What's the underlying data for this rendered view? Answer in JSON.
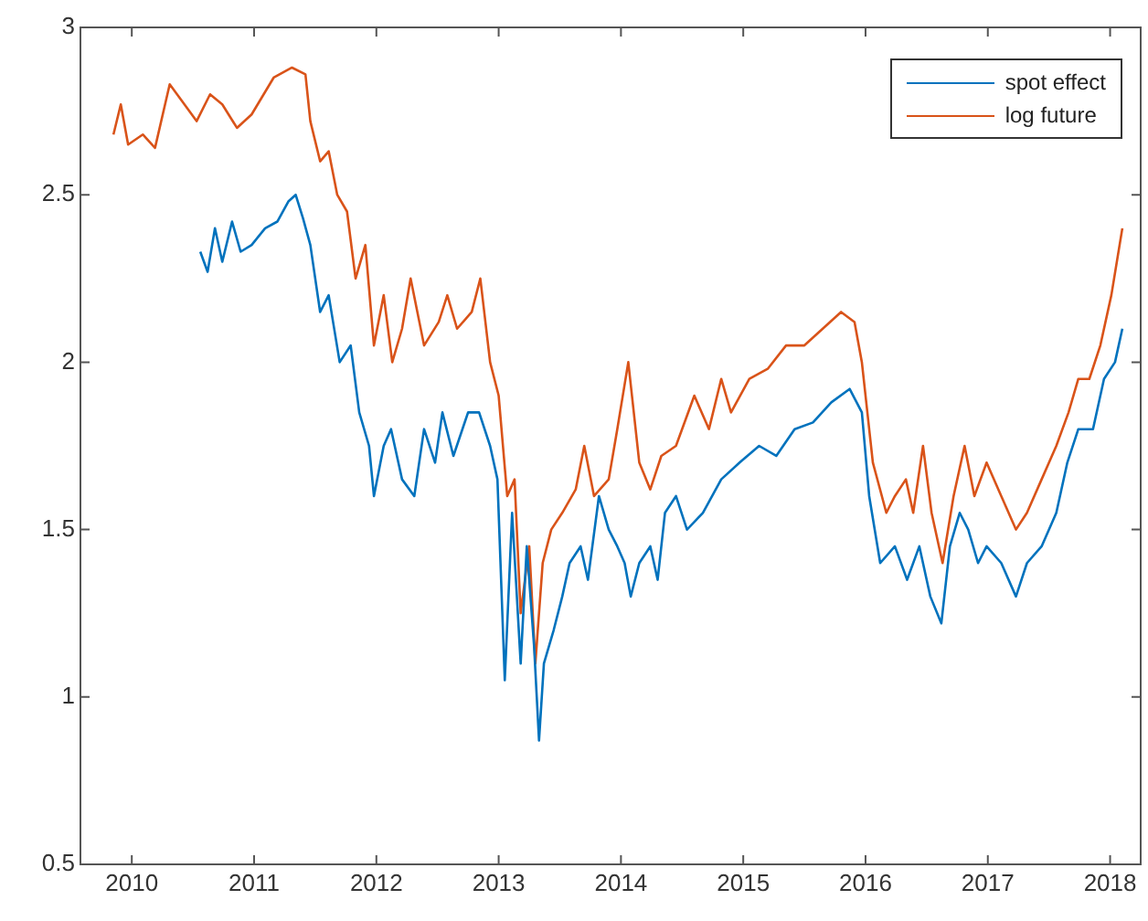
{
  "chart_data": {
    "type": "line",
    "xlim": [
      2009.58,
      2018.25
    ],
    "xticks": [
      2010,
      2011,
      2012,
      2013,
      2014,
      2015,
      2016,
      2017,
      2018
    ],
    "ylim": [
      0.5,
      3
    ],
    "yticks": [
      0.5,
      1,
      1.5,
      2,
      2.5,
      3
    ],
    "grid": false,
    "legend": "top right",
    "marker": "none",
    "line_style": "solid",
    "series": [
      {
        "name": "spot effect",
        "color": "#0072bd",
        "x": [
          2010.56,
          2010.62,
          2010.68,
          2010.74,
          2010.82,
          2010.89,
          2010.98,
          2011.09,
          2011.19,
          2011.28,
          2011.34,
          2011.4,
          2011.46,
          2011.54,
          2011.61,
          2011.7,
          2011.79,
          2011.86,
          2011.94,
          2011.98,
          2012.06,
          2012.12,
          2012.21,
          2012.31,
          2012.39,
          2012.48,
          2012.54,
          2012.63,
          2012.75,
          2012.84,
          2012.93,
          2012.99,
          2013.05,
          2013.11,
          2013.18,
          2013.23,
          2013.29,
          2013.33,
          2013.37,
          2013.45,
          2013.52,
          2013.58,
          2013.67,
          2013.73,
          2013.82,
          2013.9,
          2013.97,
          2014.03,
          2014.08,
          2014.15,
          2014.24,
          2014.3,
          2014.36,
          2014.45,
          2014.54,
          2014.67,
          2014.82,
          2014.97,
          2015.13,
          2015.27,
          2015.42,
          2015.57,
          2015.72,
          2015.87,
          2015.97,
          2016.03,
          2016.12,
          2016.24,
          2016.34,
          2016.44,
          2016.53,
          2016.62,
          2016.69,
          2016.77,
          2016.84,
          2016.92,
          2016.99,
          2017.11,
          2017.23,
          2017.32,
          2017.44,
          2017.56,
          2017.65,
          2017.74,
          2017.86,
          2017.95,
          2018.04,
          2018.1
        ],
        "values": [
          2.33,
          2.27,
          2.4,
          2.3,
          2.42,
          2.33,
          2.35,
          2.4,
          2.42,
          2.48,
          2.5,
          2.43,
          2.35,
          2.15,
          2.2,
          2.0,
          2.05,
          1.85,
          1.75,
          1.6,
          1.75,
          1.8,
          1.65,
          1.6,
          1.8,
          1.7,
          1.85,
          1.72,
          1.85,
          1.85,
          1.75,
          1.65,
          1.05,
          1.55,
          1.1,
          1.45,
          1.15,
          0.87,
          1.1,
          1.2,
          1.3,
          1.4,
          1.45,
          1.35,
          1.6,
          1.5,
          1.45,
          1.4,
          1.3,
          1.4,
          1.45,
          1.35,
          1.55,
          1.6,
          1.5,
          1.55,
          1.65,
          1.7,
          1.75,
          1.72,
          1.8,
          1.82,
          1.88,
          1.92,
          1.85,
          1.6,
          1.4,
          1.45,
          1.35,
          1.45,
          1.3,
          1.22,
          1.45,
          1.55,
          1.5,
          1.4,
          1.45,
          1.4,
          1.3,
          1.4,
          1.45,
          1.55,
          1.7,
          1.8,
          1.8,
          1.95,
          2.0,
          2.1
        ]
      },
      {
        "name": "log future",
        "color": "#d95319",
        "x": [
          2009.85,
          2009.91,
          2009.97,
          2010.09,
          2010.19,
          2010.31,
          2010.41,
          2010.53,
          2010.64,
          2010.74,
          2010.86,
          2010.98,
          2011.16,
          2011.31,
          2011.42,
          2011.46,
          2011.54,
          2011.61,
          2011.68,
          2011.76,
          2011.83,
          2011.91,
          2011.98,
          2012.06,
          2012.13,
          2012.21,
          2012.28,
          2012.39,
          2012.51,
          2012.58,
          2012.66,
          2012.78,
          2012.85,
          2012.93,
          2013.0,
          2013.07,
          2013.13,
          2013.18,
          2013.25,
          2013.3,
          2013.36,
          2013.43,
          2013.52,
          2013.63,
          2013.7,
          2013.78,
          2013.9,
          2013.97,
          2014.06,
          2014.15,
          2014.24,
          2014.33,
          2014.45,
          2014.6,
          2014.72,
          2014.82,
          2014.9,
          2015.05,
          2015.2,
          2015.35,
          2015.5,
          2015.65,
          2015.8,
          2015.91,
          2015.97,
          2016.06,
          2016.17,
          2016.24,
          2016.33,
          2016.39,
          2016.47,
          2016.54,
          2016.63,
          2016.72,
          2016.81,
          2016.89,
          2016.99,
          2017.11,
          2017.23,
          2017.32,
          2017.44,
          2017.56,
          2017.66,
          2017.74,
          2017.83,
          2017.92,
          2018.01,
          2018.1
        ],
        "values": [
          2.68,
          2.77,
          2.65,
          2.68,
          2.64,
          2.83,
          2.78,
          2.72,
          2.8,
          2.77,
          2.7,
          2.74,
          2.85,
          2.88,
          2.86,
          2.72,
          2.6,
          2.63,
          2.5,
          2.45,
          2.25,
          2.35,
          2.05,
          2.2,
          2.0,
          2.1,
          2.25,
          2.05,
          2.12,
          2.2,
          2.1,
          2.15,
          2.25,
          2.0,
          1.9,
          1.6,
          1.65,
          1.25,
          1.45,
          1.1,
          1.4,
          1.5,
          1.55,
          1.62,
          1.75,
          1.6,
          1.65,
          1.8,
          2.0,
          1.7,
          1.62,
          1.72,
          1.75,
          1.9,
          1.8,
          1.95,
          1.85,
          1.95,
          1.98,
          2.05,
          2.05,
          2.1,
          2.15,
          2.12,
          2.0,
          1.7,
          1.55,
          1.6,
          1.65,
          1.55,
          1.75,
          1.55,
          1.4,
          1.6,
          1.75,
          1.6,
          1.7,
          1.6,
          1.5,
          1.55,
          1.65,
          1.75,
          1.85,
          1.95,
          1.95,
          2.05,
          2.2,
          2.4
        ]
      }
    ]
  }
}
